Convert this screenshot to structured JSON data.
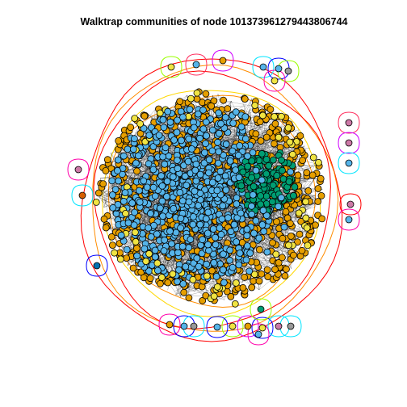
{
  "title": "Walktrap communities of node 1013739612794438067 44",
  "titleText": "Walktrap communities of node 1013739612794438067 44",
  "plot": {
    "title": "Walktrap communities of node 101373961279443806744",
    "node_colors": {
      "blue": "#56B4E9",
      "orange": "#E69F00",
      "green": "#009E73",
      "yellow": "#F0E442",
      "darkblue": "#0072B2",
      "red": "#D55E00",
      "pink": "#CC79A7",
      "gray": "#999999"
    },
    "hull_colors": [
      "#ff0000",
      "#ff8c00",
      "#ffd700",
      "#9aff00",
      "#00e5ff",
      "#0000ff",
      "#d000ff",
      "#ff00aa",
      "#ff2f5f"
    ]
  }
}
